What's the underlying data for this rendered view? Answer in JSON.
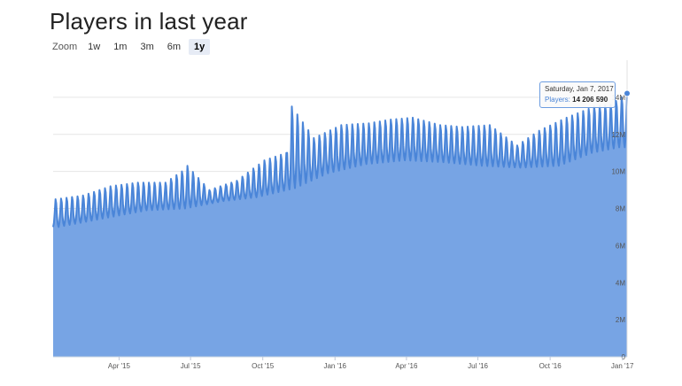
{
  "title": "Players in last year",
  "zoom": {
    "label": "Zoom",
    "buttons": [
      "1w",
      "1m",
      "3m",
      "6m",
      "1y"
    ],
    "selected": "1y"
  },
  "tooltip": {
    "date": "Saturday, Jan 7, 2017",
    "series": "Players:",
    "value": "14 206 590"
  },
  "colors": {
    "line": "#4a85d8",
    "area": "#77a4e4",
    "grid": "#e6e6e6",
    "button_active": "#e6ebf5"
  },
  "chart_data": {
    "type": "area",
    "title": "Players in last year",
    "x_range": [
      "2015-01-07",
      "2017-01-07"
    ],
    "ylim": [
      0,
      16000000
    ],
    "y_ticks": [
      {
        "value": 0,
        "label": "0"
      },
      {
        "value": 2000000,
        "label": "2M"
      },
      {
        "value": 4000000,
        "label": "4M"
      },
      {
        "value": 6000000,
        "label": "6M"
      },
      {
        "value": 8000000,
        "label": "8M"
      },
      {
        "value": 10000000,
        "label": "10M"
      },
      {
        "value": 12000000,
        "label": "12M"
      },
      {
        "value": 14000000,
        "label": "14M"
      }
    ],
    "x_ticks": [
      {
        "date": "2015-04-01",
        "label": "Apr '15"
      },
      {
        "date": "2015-07-01",
        "label": "Jul '15"
      },
      {
        "date": "2015-10-01",
        "label": "Oct '15"
      },
      {
        "date": "2016-01-01",
        "label": "Jan '16"
      },
      {
        "date": "2016-04-01",
        "label": "Apr '16"
      },
      {
        "date": "2016-07-01",
        "label": "Jul '16"
      },
      {
        "date": "2016-10-01",
        "label": "Oct '16"
      },
      {
        "date": "2017-01-01",
        "label": "Jan '17"
      }
    ],
    "grid": true,
    "legend": "none",
    "series": [
      {
        "weekly_peaks": [
          {
            "date": "2015-01-10",
            "value": 8500000
          },
          {
            "date": "2015-02-14",
            "value": 8700000
          },
          {
            "date": "2015-03-21",
            "value": 9200000
          },
          {
            "date": "2015-04-25",
            "value": 9400000
          },
          {
            "date": "2015-05-30",
            "value": 9400000
          },
          {
            "date": "2015-06-20",
            "value": 10000000
          },
          {
            "date": "2015-06-27",
            "value": 10300000
          },
          {
            "date": "2015-07-25",
            "value": 9000000
          },
          {
            "date": "2015-08-29",
            "value": 9500000
          },
          {
            "date": "2015-10-03",
            "value": 10600000
          },
          {
            "date": "2015-10-31",
            "value": 11000000
          },
          {
            "date": "2015-11-07",
            "value": 13500000
          },
          {
            "date": "2015-12-05",
            "value": 11800000
          },
          {
            "date": "2016-01-09",
            "value": 12500000
          },
          {
            "date": "2016-02-13",
            "value": 12600000
          },
          {
            "date": "2016-03-12",
            "value": 12800000
          },
          {
            "date": "2016-04-09",
            "value": 12900000
          },
          {
            "date": "2016-05-14",
            "value": 12500000
          },
          {
            "date": "2016-06-11",
            "value": 12400000
          },
          {
            "date": "2016-07-16",
            "value": 12500000
          },
          {
            "date": "2016-08-20",
            "value": 11400000
          },
          {
            "date": "2016-09-17",
            "value": 12200000
          },
          {
            "date": "2016-10-22",
            "value": 12900000
          },
          {
            "date": "2016-11-26",
            "value": 13500000
          },
          {
            "date": "2016-12-17",
            "value": 13600000
          },
          {
            "date": "2017-01-07",
            "value": 14206590
          }
        ],
        "weekly_lows": [
          {
            "date": "2015-01-14",
            "value": 7000000
          },
          {
            "date": "2015-03-04",
            "value": 7400000
          },
          {
            "date": "2015-05-06",
            "value": 7900000
          },
          {
            "date": "2015-06-24",
            "value": 8000000
          },
          {
            "date": "2015-08-12",
            "value": 8400000
          },
          {
            "date": "2015-09-23",
            "value": 8600000
          },
          {
            "date": "2015-11-11",
            "value": 9100000
          },
          {
            "date": "2015-12-23",
            "value": 9900000
          },
          {
            "date": "2016-02-10",
            "value": 10400000
          },
          {
            "date": "2016-03-30",
            "value": 10600000
          },
          {
            "date": "2016-05-18",
            "value": 10500000
          },
          {
            "date": "2016-07-06",
            "value": 10300000
          },
          {
            "date": "2016-08-24",
            "value": 10200000
          },
          {
            "date": "2016-10-12",
            "value": 10300000
          },
          {
            "date": "2016-11-23",
            "value": 11000000
          },
          {
            "date": "2016-12-28",
            "value": 11300000
          }
        ]
      }
    ]
  }
}
